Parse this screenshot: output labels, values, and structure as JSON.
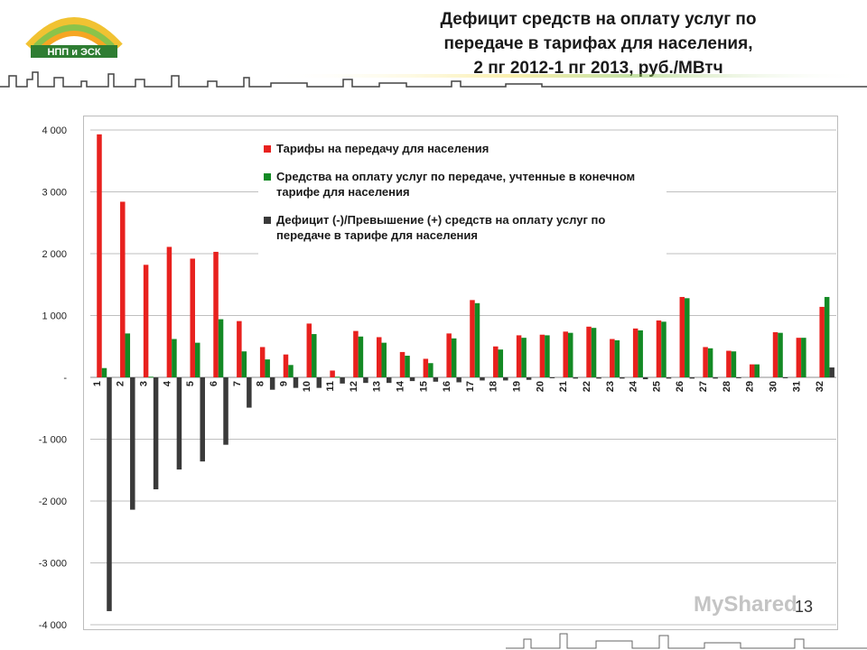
{
  "header": {
    "title_lines": [
      "Дефицит средств на оплату услуг по",
      "передаче в тарифах для населения,",
      "2 пг 2012-1 пг 2013, руб./МВтч"
    ],
    "logo_text": "НПП и ЭСК"
  },
  "chart_data": {
    "type": "bar",
    "title": "Дефицит средств на оплату услуг по передаче в тарифах для населения, 2 пг 2012-1 пг 2013, руб./МВтч",
    "categories": [
      "1",
      "2",
      "3",
      "4",
      "5",
      "6",
      "7",
      "8",
      "9",
      "10",
      "11",
      "12",
      "13",
      "14",
      "15",
      "16",
      "17",
      "18",
      "19",
      "20",
      "21",
      "22",
      "23",
      "24",
      "25",
      "26",
      "27",
      "28",
      "29",
      "30",
      "31",
      "32"
    ],
    "ylim": [
      -4000,
      4000
    ],
    "yticks": [
      4000,
      3000,
      2000,
      1000,
      0,
      -1000,
      -2000,
      -3000,
      -4000
    ],
    "ytick_labels": [
      "4 000",
      "3 000",
      "2 000",
      "1 000",
      "-",
      "-1 000",
      "-2 000",
      "-3 000",
      "-4 000"
    ],
    "grid": true,
    "legend_position": "top-center",
    "series": [
      {
        "name": "Тарифы на передачу для населения",
        "color": "#e8211e",
        "values": [
          3930,
          2840,
          1820,
          2110,
          1920,
          2030,
          910,
          490,
          370,
          870,
          110,
          750,
          650,
          410,
          300,
          710,
          1250,
          500,
          680,
          690,
          740,
          820,
          620,
          790,
          920,
          1300,
          490,
          430,
          210,
          730,
          640,
          1140
        ]
      },
      {
        "name": "Средства на оплату услуг по передаче, учтенные в конечном тарифе для населения",
        "color": "#138a24",
        "values": [
          150,
          710,
          10,
          620,
          560,
          940,
          420,
          290,
          200,
          700,
          10,
          660,
          560,
          350,
          230,
          630,
          1200,
          450,
          640,
          680,
          720,
          800,
          600,
          760,
          900,
          1280,
          470,
          420,
          210,
          720,
          640,
          1300
        ]
      },
      {
        "name": "Дефицит (-)/Превышение (+) средств на оплату услуг по передаче в тарифе для населения",
        "color": "#3a3a3a",
        "values": [
          -3780,
          -2140,
          -1810,
          -1490,
          -1360,
          -1090,
          -490,
          -200,
          -170,
          -170,
          -100,
          -90,
          -90,
          -60,
          -70,
          -80,
          -50,
          -50,
          -40,
          -10,
          -20,
          -20,
          -20,
          -30,
          -20,
          -20,
          -20,
          -10,
          0,
          -10,
          0,
          160
        ]
      }
    ]
  },
  "footer": {
    "page_number": "13",
    "watermark": "MyShared"
  }
}
